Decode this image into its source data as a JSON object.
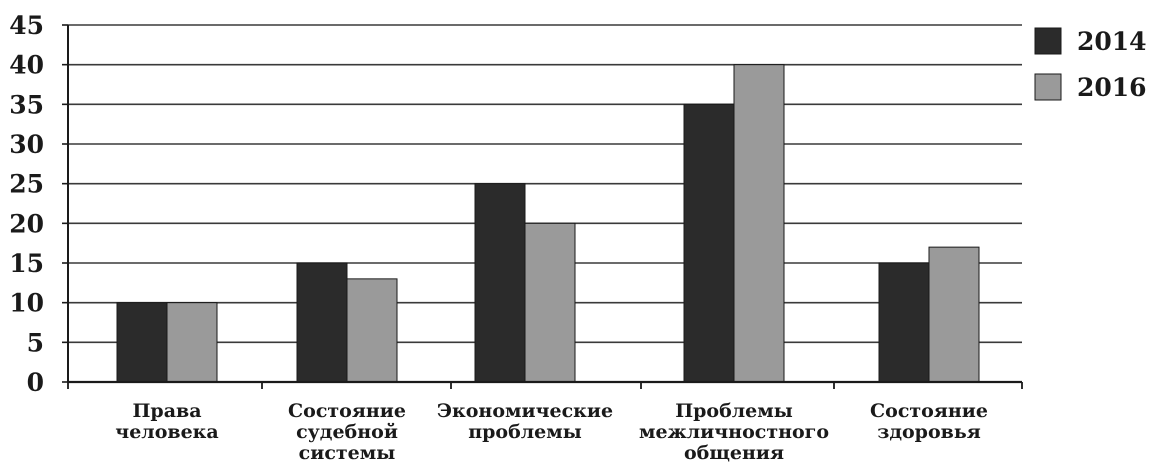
{
  "chart_data": {
    "type": "bar",
    "title": "",
    "xlabel": "",
    "ylabel": "",
    "ylim": [
      0,
      45
    ],
    "yticks": [
      0,
      5,
      10,
      15,
      20,
      25,
      30,
      35,
      40,
      45
    ],
    "grid": true,
    "legend_position": "right",
    "categories": [
      [
        "Права",
        "человека"
      ],
      [
        "Состояние",
        "судебной",
        "системы"
      ],
      [
        "Экономические",
        "проблемы"
      ],
      [
        "Проблемы",
        "межличностного",
        "общения"
      ],
      [
        "Состояние",
        "здоровья"
      ]
    ],
    "series": [
      {
        "name": "2014",
        "color": "#2b2b2b",
        "values": [
          10,
          15,
          25,
          35,
          15
        ]
      },
      {
        "name": "2016",
        "color": "#9a9a9a",
        "values": [
          10,
          13,
          20,
          40,
          17
        ]
      }
    ]
  }
}
